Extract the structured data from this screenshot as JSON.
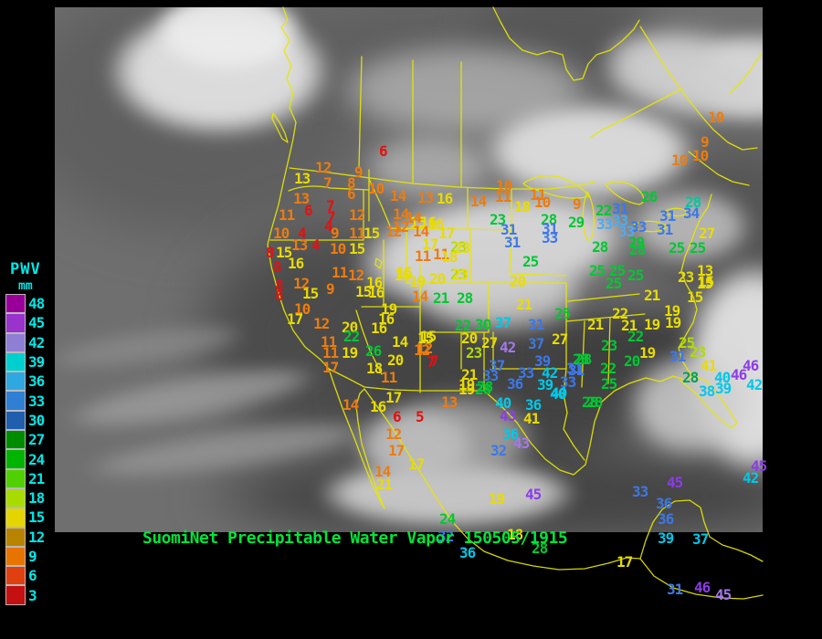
{
  "footer": {
    "title": "SuomiNet Precipitable Water Vapor 150505/1915"
  },
  "legend": {
    "title": "PWV",
    "units": "mm",
    "label_color": "#00e8e8",
    "entries": [
      {
        "value": "48",
        "color": "#990099"
      },
      {
        "value": "45",
        "color": "#9933cc"
      },
      {
        "value": "42",
        "color": "#8f7fd4"
      },
      {
        "value": "39",
        "color": "#00cfcf"
      },
      {
        "value": "36",
        "color": "#2fa7e0"
      },
      {
        "value": "33",
        "color": "#2f7fd4"
      },
      {
        "value": "30",
        "color": "#1f5fae"
      },
      {
        "value": "27",
        "color": "#008c00"
      },
      {
        "value": "24",
        "color": "#00b400"
      },
      {
        "value": "21",
        "color": "#50d000"
      },
      {
        "value": "18",
        "color": "#a8dc00"
      },
      {
        "value": "15",
        "color": "#e4d400"
      },
      {
        "value": "12",
        "color": "#b88400"
      },
      {
        "value": "9",
        "color": "#e87400"
      },
      {
        "value": "6",
        "color": "#e04010"
      },
      {
        "value": "3",
        "color": "#c41010"
      }
    ]
  },
  "palette": {
    "r": "#e41010",
    "o": "#ec7c10",
    "y": "#e8dc00",
    "yg": "#b0dc00",
    "g": "#00c832",
    "dg": "#00a050",
    "t": "#00c8a0",
    "b": "#3c78e8",
    "lb": "#50aaf0",
    "c": "#00c8e8",
    "p": "#8c3ce8",
    "lp": "#a478ec"
  },
  "stations": [
    [
      415,
      158,
      "6",
      "r"
    ],
    [
      345,
      176,
      "12",
      "o"
    ],
    [
      388,
      181,
      "9",
      "o"
    ],
    [
      322,
      188,
      "13",
      "y"
    ],
    [
      354,
      193,
      "7",
      "o"
    ],
    [
      380,
      193,
      "8",
      "o"
    ],
    [
      380,
      205,
      "6",
      "o"
    ],
    [
      403,
      199,
      "10",
      "o"
    ],
    [
      427,
      207,
      "14",
      "o"
    ],
    [
      457,
      209,
      "13",
      "o"
    ],
    [
      478,
      210,
      "16",
      "y"
    ],
    [
      321,
      210,
      "13",
      "o"
    ],
    [
      333,
      223,
      "6",
      "r"
    ],
    [
      305,
      228,
      "11",
      "o"
    ],
    [
      357,
      218,
      "7",
      "r"
    ],
    [
      358,
      230,
      "7",
      "r"
    ],
    [
      355,
      240,
      "4",
      "r"
    ],
    [
      382,
      228,
      "12",
      "o"
    ],
    [
      362,
      248,
      "9",
      "o"
    ],
    [
      382,
      248,
      "11",
      "o"
    ],
    [
      398,
      248,
      "15",
      "y"
    ],
    [
      422,
      246,
      "12",
      "o"
    ],
    [
      430,
      227,
      "14",
      "o"
    ],
    [
      449,
      236,
      "15",
      "y"
    ],
    [
      468,
      238,
      "16",
      "y"
    ],
    [
      480,
      248,
      "17",
      "y"
    ],
    [
      299,
      248,
      "10",
      "o"
    ],
    [
      326,
      248,
      "4",
      "r"
    ],
    [
      319,
      261,
      "13",
      "o"
    ],
    [
      341,
      261,
      "4",
      "r"
    ],
    [
      361,
      265,
      "10",
      "o"
    ],
    [
      382,
      265,
      "15",
      "y"
    ],
    [
      291,
      269,
      "8",
      "r"
    ],
    [
      302,
      269,
      "15",
      "y"
    ],
    [
      462,
      260,
      "17",
      "y"
    ],
    [
      299,
      285,
      "8",
      "r"
    ],
    [
      315,
      281,
      "16",
      "y"
    ],
    [
      321,
      303,
      "12",
      "o"
    ],
    [
      301,
      305,
      "8",
      "r"
    ],
    [
      301,
      316,
      "8",
      "r"
    ],
    [
      331,
      314,
      "15",
      "y"
    ],
    [
      357,
      309,
      "9",
      "o"
    ],
    [
      322,
      331,
      "10",
      "o"
    ],
    [
      314,
      342,
      "17",
      "y"
    ],
    [
      343,
      347,
      "12",
      "o"
    ],
    [
      351,
      367,
      "11",
      "o"
    ],
    [
      353,
      379,
      "11",
      "o"
    ],
    [
      353,
      395,
      "17",
      "o"
    ],
    [
      363,
      291,
      "11",
      "o"
    ],
    [
      381,
      294,
      "12",
      "o"
    ],
    [
      401,
      302,
      "16",
      "y"
    ],
    [
      389,
      312,
      "15",
      "y"
    ],
    [
      403,
      313,
      "16",
      "y"
    ],
    [
      432,
      294,
      "15",
      "y"
    ],
    [
      448,
      301,
      "19",
      "y"
    ],
    [
      470,
      298,
      "20",
      "y"
    ],
    [
      451,
      317,
      "14",
      "o"
    ],
    [
      474,
      319,
      "21",
      "g"
    ],
    [
      417,
      331,
      "19",
      "y"
    ],
    [
      414,
      342,
      "16",
      "y"
    ],
    [
      406,
      352,
      "16",
      "y"
    ],
    [
      374,
      351,
      "20",
      "y"
    ],
    [
      376,
      361,
      "22",
      "g"
    ],
    [
      374,
      379,
      "19",
      "y"
    ],
    [
      400,
      377,
      "26",
      "g"
    ],
    [
      401,
      396,
      "18",
      "y"
    ],
    [
      424,
      387,
      "20",
      "y"
    ],
    [
      429,
      367,
      "14",
      "y"
    ],
    [
      460,
      361,
      "15",
      "y"
    ],
    [
      456,
      374,
      "12",
      "o"
    ],
    [
      471,
      388,
      "7",
      "r"
    ],
    [
      417,
      406,
      "11",
      "o"
    ],
    [
      444,
      231,
      "14",
      "o"
    ],
    [
      460,
      236,
      "16",
      "y"
    ],
    [
      430,
      241,
      "12",
      "o"
    ],
    [
      452,
      246,
      "14",
      "o"
    ],
    [
      454,
      273,
      "11",
      "o"
    ],
    [
      474,
      271,
      "11",
      "o"
    ],
    [
      493,
      263,
      "23",
      "yg"
    ],
    [
      483,
      274,
      "18",
      "y"
    ],
    [
      434,
      291,
      "15",
      "y"
    ],
    [
      493,
      293,
      "23",
      "yg"
    ],
    [
      500,
      319,
      "28",
      "g"
    ],
    [
      536,
      233,
      "23",
      "g"
    ],
    [
      548,
      244,
      "31",
      "b"
    ],
    [
      552,
      258,
      "31",
      "b"
    ],
    [
      592,
      233,
      "28",
      "g"
    ],
    [
      593,
      243,
      "31",
      "b"
    ],
    [
      593,
      253,
      "33",
      "b"
    ],
    [
      622,
      236,
      "29",
      "g"
    ],
    [
      572,
      279,
      "25",
      "g"
    ],
    [
      558,
      301,
      "20",
      "y"
    ],
    [
      565,
      326,
      "21",
      "y"
    ],
    [
      607,
      336,
      "25",
      "g"
    ],
    [
      543,
      196,
      "10",
      "o"
    ],
    [
      542,
      208,
      "11",
      "o"
    ],
    [
      515,
      213,
      "14",
      "o"
    ],
    [
      563,
      219,
      "18",
      "y"
    ],
    [
      580,
      206,
      "11",
      "o"
    ],
    [
      585,
      214,
      "10",
      "o"
    ],
    [
      627,
      216,
      "9",
      "o"
    ],
    [
      652,
      223,
      "22",
      "g"
    ],
    [
      670,
      221,
      "31",
      "b"
    ],
    [
      653,
      238,
      "33",
      "lb"
    ],
    [
      670,
      234,
      "33",
      "lb"
    ],
    [
      690,
      241,
      "33",
      "b"
    ],
    [
      677,
      246,
      "33",
      "lb"
    ],
    [
      497,
      264,
      "23",
      "y"
    ],
    [
      495,
      293,
      "23",
      "y"
    ],
    [
      648,
      263,
      "28",
      "g"
    ],
    [
      645,
      289,
      "25",
      "g"
    ],
    [
      667,
      289,
      "25",
      "g"
    ],
    [
      687,
      294,
      "25",
      "g"
    ],
    [
      663,
      303,
      "25",
      "g"
    ],
    [
      688,
      258,
      "29",
      "g"
    ],
    [
      689,
      266,
      "28",
      "g"
    ],
    [
      702,
      208,
      "26",
      "g"
    ],
    [
      722,
      229,
      "31",
      "b"
    ],
    [
      719,
      244,
      "31",
      "b"
    ],
    [
      750,
      214,
      "28",
      "t"
    ],
    [
      748,
      226,
      "34",
      "b"
    ],
    [
      765,
      248,
      "27",
      "y"
    ],
    [
      732,
      264,
      "25",
      "g"
    ],
    [
      755,
      264,
      "25",
      "g"
    ],
    [
      742,
      296,
      "23",
      "y"
    ],
    [
      763,
      289,
      "13",
      "y"
    ],
    [
      763,
      303,
      "15",
      "y"
    ],
    [
      775,
      121,
      "10",
      "o"
    ],
    [
      767,
      148,
      "9",
      "o"
    ],
    [
      758,
      163,
      "10",
      "o"
    ],
    [
      735,
      168,
      "10",
      "o"
    ],
    [
      643,
      348,
      "21",
      "y"
    ],
    [
      670,
      336,
      "22",
      "y"
    ],
    [
      680,
      349,
      "21",
      "y"
    ],
    [
      705,
      348,
      "19",
      "y"
    ],
    [
      728,
      346,
      "19",
      "y"
    ],
    [
      727,
      333,
      "19",
      "y"
    ],
    [
      705,
      316,
      "21",
      "y"
    ],
    [
      752,
      318,
      "15",
      "y"
    ],
    [
      764,
      301,
      "15",
      "y"
    ],
    [
      687,
      361,
      "22",
      "g"
    ],
    [
      658,
      371,
      "23",
      "g"
    ],
    [
      700,
      379,
      "19",
      "y"
    ],
    [
      683,
      388,
      "20",
      "g"
    ],
    [
      604,
      364,
      "27",
      "y"
    ],
    [
      630,
      386,
      "28",
      "g"
    ],
    [
      622,
      398,
      "31",
      "b"
    ],
    [
      613,
      411,
      "33",
      "b"
    ],
    [
      603,
      423,
      "40",
      "c"
    ],
    [
      657,
      396,
      "22",
      "g"
    ],
    [
      658,
      413,
      "25",
      "g"
    ],
    [
      642,
      433,
      "28",
      "g"
    ],
    [
      733,
      383,
      "31",
      "b"
    ],
    [
      743,
      368,
      "25",
      "yg"
    ],
    [
      755,
      378,
      "23",
      "yg"
    ],
    [
      767,
      393,
      "41",
      "y"
    ],
    [
      782,
      406,
      "40",
      "c"
    ],
    [
      813,
      393,
      "46",
      "p"
    ],
    [
      800,
      403,
      "46",
      "p"
    ],
    [
      747,
      406,
      "28",
      "dg"
    ],
    [
      765,
      421,
      "38",
      "c"
    ],
    [
      783,
      418,
      "39",
      "c"
    ],
    [
      817,
      414,
      "42",
      "c"
    ],
    [
      457,
      363,
      "15",
      "y"
    ],
    [
      453,
      376,
      "12",
      "o"
    ],
    [
      467,
      389,
      "7",
      "r"
    ],
    [
      498,
      349,
      "22",
      "g"
    ],
    [
      520,
      348,
      "30",
      "g"
    ],
    [
      542,
      346,
      "37",
      "c"
    ],
    [
      578,
      348,
      "31",
      "b"
    ],
    [
      505,
      363,
      "20",
      "y"
    ],
    [
      527,
      368,
      "27",
      "y"
    ],
    [
      547,
      373,
      "42",
      "lp"
    ],
    [
      578,
      369,
      "37",
      "b"
    ],
    [
      510,
      379,
      "23",
      "yg"
    ],
    [
      535,
      393,
      "37",
      "b"
    ],
    [
      528,
      404,
      "33",
      "b"
    ],
    [
      567,
      401,
      "33",
      "b"
    ],
    [
      585,
      388,
      "39",
      "b"
    ],
    [
      593,
      401,
      "42",
      "c"
    ],
    [
      620,
      396,
      "31",
      "b"
    ],
    [
      627,
      386,
      "28",
      "g"
    ],
    [
      588,
      414,
      "39",
      "c"
    ],
    [
      505,
      403,
      "21",
      "y"
    ],
    [
      502,
      414,
      "19",
      "y"
    ],
    [
      522,
      416,
      "28",
      "g"
    ],
    [
      555,
      413,
      "36",
      "b"
    ],
    [
      602,
      424,
      "40",
      "c"
    ],
    [
      483,
      433,
      "13",
      "o"
    ],
    [
      542,
      434,
      "40",
      "c"
    ],
    [
      575,
      436,
      "36",
      "c"
    ],
    [
      547,
      448,
      "43",
      "p"
    ],
    [
      573,
      451,
      "41",
      "y"
    ],
    [
      455,
      449,
      "5",
      "r"
    ],
    [
      637,
      433,
      "28",
      "g"
    ],
    [
      375,
      436,
      "14",
      "o"
    ],
    [
      405,
      438,
      "16",
      "y"
    ],
    [
      422,
      428,
      "17",
      "y"
    ],
    [
      430,
      449,
      "6",
      "r"
    ],
    [
      422,
      468,
      "12",
      "o"
    ],
    [
      425,
      486,
      "17",
      "o"
    ],
    [
      447,
      501,
      "17",
      "y"
    ],
    [
      410,
      509,
      "14",
      "o"
    ],
    [
      412,
      523,
      "21",
      "y"
    ],
    [
      502,
      419,
      "19",
      "y"
    ],
    [
      520,
      419,
      "28",
      "g"
    ],
    [
      550,
      468,
      "36",
      "c"
    ],
    [
      562,
      478,
      "43",
      "lp"
    ],
    [
      537,
      486,
      "32",
      "b"
    ],
    [
      535,
      539,
      "19",
      "y"
    ],
    [
      575,
      534,
      "45",
      "p"
    ],
    [
      481,
      561,
      "24",
      "g"
    ],
    [
      479,
      580,
      "32",
      "b"
    ],
    [
      503,
      598,
      "36",
      "c"
    ],
    [
      582,
      593,
      "28",
      "g"
    ],
    [
      555,
      578,
      "18",
      "y"
    ],
    [
      675,
      608,
      "17",
      "y"
    ],
    [
      730,
      521,
      "45",
      "p"
    ],
    [
      692,
      531,
      "33",
      "b"
    ],
    [
      718,
      544,
      "36",
      "b"
    ],
    [
      720,
      561,
      "36",
      "b"
    ],
    [
      720,
      582,
      "39",
      "c"
    ],
    [
      758,
      583,
      "37",
      "c"
    ],
    [
      730,
      638,
      "31",
      "b"
    ],
    [
      760,
      636,
      "46",
      "p"
    ],
    [
      783,
      644,
      "45",
      "lp"
    ],
    [
      813,
      516,
      "42",
      "c"
    ],
    [
      822,
      503,
      "45",
      "p"
    ]
  ]
}
